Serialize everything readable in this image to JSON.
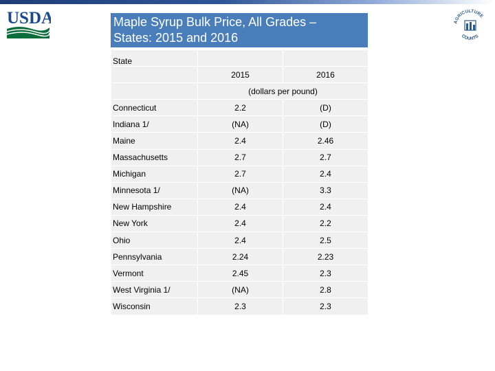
{
  "logos": {
    "left": {
      "name": "usda-logo",
      "text": "USDA",
      "colors": [
        "#0b6e3a",
        "#1a4a8a"
      ]
    },
    "right": {
      "name": "agriculture-counts-seal",
      "text": "AGRICULTURE COUNTS",
      "color": "#2d5a8a"
    }
  },
  "colors": {
    "title_bg": "#4a7ebb",
    "cell_bg": "#f0f0f0",
    "top_bar": "#1f3d7a"
  },
  "title": {
    "line1": "Maple Syrup Bulk Price, All Grades –",
    "line2": "States: 2015 and 2016"
  },
  "table": {
    "header_state": "State",
    "year_2015": "2015",
    "year_2016": "2016",
    "unit": "(dollars per pound)",
    "rows": [
      {
        "state": "Connecticut",
        "v2015": "2.2",
        "v2016": "(D)"
      },
      {
        "state": "Indiana 1/",
        "v2015": "(NA)",
        "v2016": "(D)"
      },
      {
        "state": "Maine",
        "v2015": "2.4",
        "v2016": "2.46"
      },
      {
        "state": "Massachusetts",
        "v2015": "2.7",
        "v2016": "2.7"
      },
      {
        "state": "Michigan",
        "v2015": "2.7",
        "v2016": "2.4"
      },
      {
        "state": "Minnesota 1/",
        "v2015": "(NA)",
        "v2016": "3.3"
      },
      {
        "state": "New Hampshire",
        "v2015": "2.4",
        "v2016": "2.4"
      },
      {
        "state": "New York",
        "v2015": "2.4",
        "v2016": "2.2"
      },
      {
        "state": "Ohio",
        "v2015": "2.4",
        "v2016": "2.5"
      },
      {
        "state": "Pennsylvania",
        "v2015": "2.24",
        "v2016": "2.23"
      },
      {
        "state": "Vermont",
        "v2015": "2.45",
        "v2016": "2.3"
      },
      {
        "state": "West Virginia 1/",
        "v2015": "(NA)",
        "v2016": "2.8"
      },
      {
        "state": "Wisconsin",
        "v2015": "2.3",
        "v2016": "2.3"
      }
    ]
  }
}
